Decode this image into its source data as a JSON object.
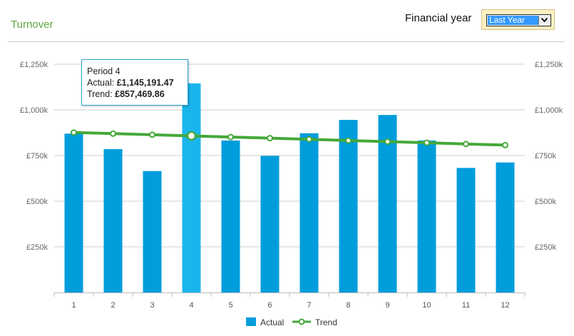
{
  "page": {
    "title": "Turnover"
  },
  "filter": {
    "label": "Financial year",
    "selected": "Last Year"
  },
  "tooltip": {
    "period": "Period 4",
    "actual_label": "Actual:",
    "actual_value": "£1,145,191.47",
    "trend_label": "Trend:",
    "trend_value": "£857,469.86"
  },
  "colors": {
    "bar": "#009ddc",
    "bar_highlight": "#1bb5ee",
    "trend": "#45a83a",
    "grid": "#cccccc",
    "axis_text": "#666666"
  },
  "chart_data": {
    "type": "bar",
    "title": "Turnover",
    "categories": [
      "1",
      "2",
      "3",
      "4",
      "5",
      "6",
      "7",
      "8",
      "9",
      "10",
      "11",
      "12"
    ],
    "series": [
      {
        "name": "Actual",
        "type": "bar",
        "values": [
          870000,
          785000,
          665000,
          1145191.47,
          832000,
          748000,
          872000,
          945000,
          972000,
          832000,
          682000,
          712000
        ]
      },
      {
        "name": "Trend",
        "type": "line",
        "values": [
          876000,
          870000,
          864000,
          857469.86,
          851000,
          845000,
          839000,
          832000,
          826000,
          820000,
          813000,
          807000
        ]
      }
    ],
    "ylim": [
      0,
      1250000
    ],
    "yticks": [
      250000,
      500000,
      750000,
      1000000,
      1250000
    ],
    "ytick_labels": [
      "£250k",
      "£500k",
      "£750k",
      "£1,000k",
      "£1,250k"
    ],
    "grid": true,
    "legend": "bottom-center",
    "highlighted_index": 3
  }
}
